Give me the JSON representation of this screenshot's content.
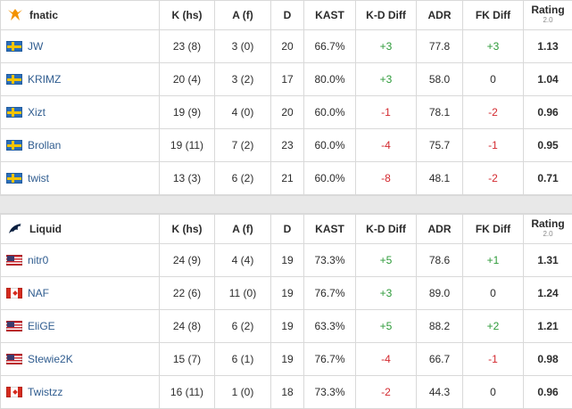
{
  "columns": {
    "k_hs": "K (hs)",
    "a_f": "A (f)",
    "d": "D",
    "kast": "KAST",
    "kd_diff": "K-D Diff",
    "adr": "ADR",
    "fk_diff": "FK Diff",
    "rating": "Rating",
    "rating_version": "2.0"
  },
  "colors": {
    "positive": "#2e9b3a",
    "negative": "#d3292f",
    "player_link": "#2f5c8f",
    "border": "#d9d9d9",
    "separator": "#e8e8e8"
  },
  "teams": [
    {
      "name": "fnatic",
      "logo_icon": "fnatic-logo-icon",
      "players": [
        {
          "name": "JW",
          "flag": "sweden-flag-icon",
          "k_hs": "23 (8)",
          "a_f": "3 (0)",
          "d": "20",
          "kast": "66.7%",
          "kd_diff": "+3",
          "adr": "77.8",
          "fk_diff": "+3",
          "rating": "1.13"
        },
        {
          "name": "KRIMZ",
          "flag": "sweden-flag-icon",
          "k_hs": "20 (4)",
          "a_f": "3 (2)",
          "d": "17",
          "kast": "80.0%",
          "kd_diff": "+3",
          "adr": "58.0",
          "fk_diff": "0",
          "rating": "1.04"
        },
        {
          "name": "Xizt",
          "flag": "sweden-flag-icon",
          "k_hs": "19 (9)",
          "a_f": "4 (0)",
          "d": "20",
          "kast": "60.0%",
          "kd_diff": "-1",
          "adr": "78.1",
          "fk_diff": "-2",
          "rating": "0.96"
        },
        {
          "name": "Brollan",
          "flag": "sweden-flag-icon",
          "k_hs": "19 (11)",
          "a_f": "7 (2)",
          "d": "23",
          "kast": "60.0%",
          "kd_diff": "-4",
          "adr": "75.7",
          "fk_diff": "-1",
          "rating": "0.95"
        },
        {
          "name": "twist",
          "flag": "sweden-flag-icon",
          "k_hs": "13 (3)",
          "a_f": "6 (2)",
          "d": "21",
          "kast": "60.0%",
          "kd_diff": "-8",
          "adr": "48.1",
          "fk_diff": "-2",
          "rating": "0.71"
        }
      ]
    },
    {
      "name": "Liquid",
      "logo_icon": "liquid-logo-icon",
      "players": [
        {
          "name": "nitr0",
          "flag": "usa-flag-icon",
          "k_hs": "24 (9)",
          "a_f": "4 (4)",
          "d": "19",
          "kast": "73.3%",
          "kd_diff": "+5",
          "adr": "78.6",
          "fk_diff": "+1",
          "rating": "1.31"
        },
        {
          "name": "NAF",
          "flag": "canada-flag-icon",
          "k_hs": "22 (6)",
          "a_f": "11 (0)",
          "d": "19",
          "kast": "76.7%",
          "kd_diff": "+3",
          "adr": "89.0",
          "fk_diff": "0",
          "rating": "1.24"
        },
        {
          "name": "EliGE",
          "flag": "usa-flag-icon",
          "k_hs": "24 (8)",
          "a_f": "6 (2)",
          "d": "19",
          "kast": "63.3%",
          "kd_diff": "+5",
          "adr": "88.2",
          "fk_diff": "+2",
          "rating": "1.21"
        },
        {
          "name": "Stewie2K",
          "flag": "usa-flag-icon",
          "k_hs": "15 (7)",
          "a_f": "6 (1)",
          "d": "19",
          "kast": "76.7%",
          "kd_diff": "-4",
          "adr": "66.7",
          "fk_diff": "-1",
          "rating": "0.98"
        },
        {
          "name": "Twistzz",
          "flag": "canada-flag-icon",
          "k_hs": "16 (11)",
          "a_f": "1 (0)",
          "d": "18",
          "kast": "73.3%",
          "kd_diff": "-2",
          "adr": "44.3",
          "fk_diff": "0",
          "rating": "0.96"
        }
      ]
    }
  ]
}
